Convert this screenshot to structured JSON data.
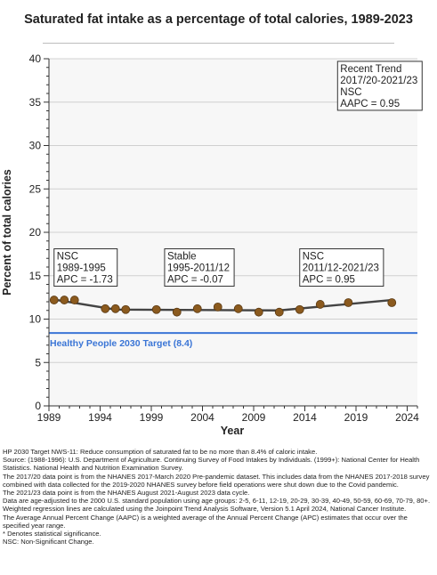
{
  "chart_data": {
    "type": "line",
    "title": "Saturated fat intake as a percentage of total calories, 1989-2023",
    "xlabel": "Year",
    "ylabel": "Percent of total calories",
    "xlim": [
      1989,
      2025
    ],
    "ylim": [
      0,
      40
    ],
    "xticks": [
      1989,
      1994,
      1999,
      2004,
      2009,
      2014,
      2019,
      2024
    ],
    "xtick_labels": [
      "1989",
      "1994",
      "1999",
      "2004",
      "2009",
      "2014",
      "2019",
      "2024"
    ],
    "yticks": [
      0,
      5,
      10,
      15,
      20,
      25,
      30,
      35,
      40
    ],
    "ytick_labels": [
      "0",
      "5",
      "10",
      "15",
      "20",
      "25",
      "30",
      "35",
      "40"
    ],
    "grid": "horizontal",
    "observed": {
      "x": [
        1989.5,
        1990.5,
        1991.5,
        1994.5,
        1995.5,
        1996.5,
        1999.5,
        2001.5,
        2003.5,
        2005.5,
        2007.5,
        2009.5,
        2011.5,
        2013.5,
        2015.5,
        2018.25,
        2022.5
      ],
      "y": [
        12.2,
        12.2,
        12.2,
        11.2,
        11.2,
        11.1,
        11.1,
        10.8,
        11.2,
        11.4,
        11.2,
        10.8,
        10.8,
        11.1,
        11.7,
        11.9,
        11.9
      ],
      "marker_color": "#8b5a1e"
    },
    "trend_line": {
      "x": [
        1989.5,
        1995.5,
        2011.5,
        2022.5
      ],
      "y": [
        12.25,
        11.1,
        11.0,
        12.2
      ],
      "color": "#444444"
    },
    "target": {
      "value": 8.4,
      "label": "Healthy People 2030 Target (8.4)",
      "color": "#3a75d6"
    },
    "segment_boxes": [
      {
        "lines": [
          "NSC",
          "1989-1995",
          "APC = -1.73"
        ],
        "x": 1989.5,
        "y": 18.1
      },
      {
        "lines": [
          "Stable",
          "1995-2011/12",
          "APC = -0.07"
        ],
        "x": 2000.3,
        "y": 18.1
      },
      {
        "lines": [
          "NSC",
          "2011/12-2021/23",
          "APC =  0.95"
        ],
        "x": 2013.5,
        "y": 18.1
      }
    ],
    "recent_trend_box": {
      "lines": [
        "Recent Trend",
        "2017/20-2021/23",
        "NSC",
        "AAPC =  0.95"
      ],
      "x": 2017.2,
      "y": 39.7
    }
  },
  "footnotes": [
    "HP 2030 Target NWS-11: Reduce consumption of saturated fat to be no more than 8.4% of caloric intake.",
    "Source: (1988-1996): U.S. Department of Agriculture. Continuing Survey of Food Intakes by Individuals. (1999+): National Center for Health Statistics. National Health and Nutrition Examination Survey.",
    "The 2017/20 data point is from the NHANES 2017-March 2020 Pre-pandemic dataset. This includes data from the NHANES 2017-2018 survey combined with data collected for the 2019-2020 NHANES survey before field operations were shut down due to the Covid pandemic.",
    "The 2021/23 data point is from the NHANES August 2021-August 2023 data cycle.",
    "Data are age-adjusted to the 2000 U.S. standard population using age groups: 2-5, 6-11, 12-19, 20-29, 30-39, 40-49, 50-59, 60-69, 70-79, 80+.",
    "Weighted regression lines are calculated using the Joinpoint Trend Analysis Software, Version 5.1 April 2024, National Cancer Institute.",
    "The Average Annual Percent Change (AAPC) is a weighted average of the Annual Percent Change (APC) estimates that occur over the specified year range.",
    "* Denotes statistical significance.",
    "NSC: Non-Significant Change."
  ]
}
